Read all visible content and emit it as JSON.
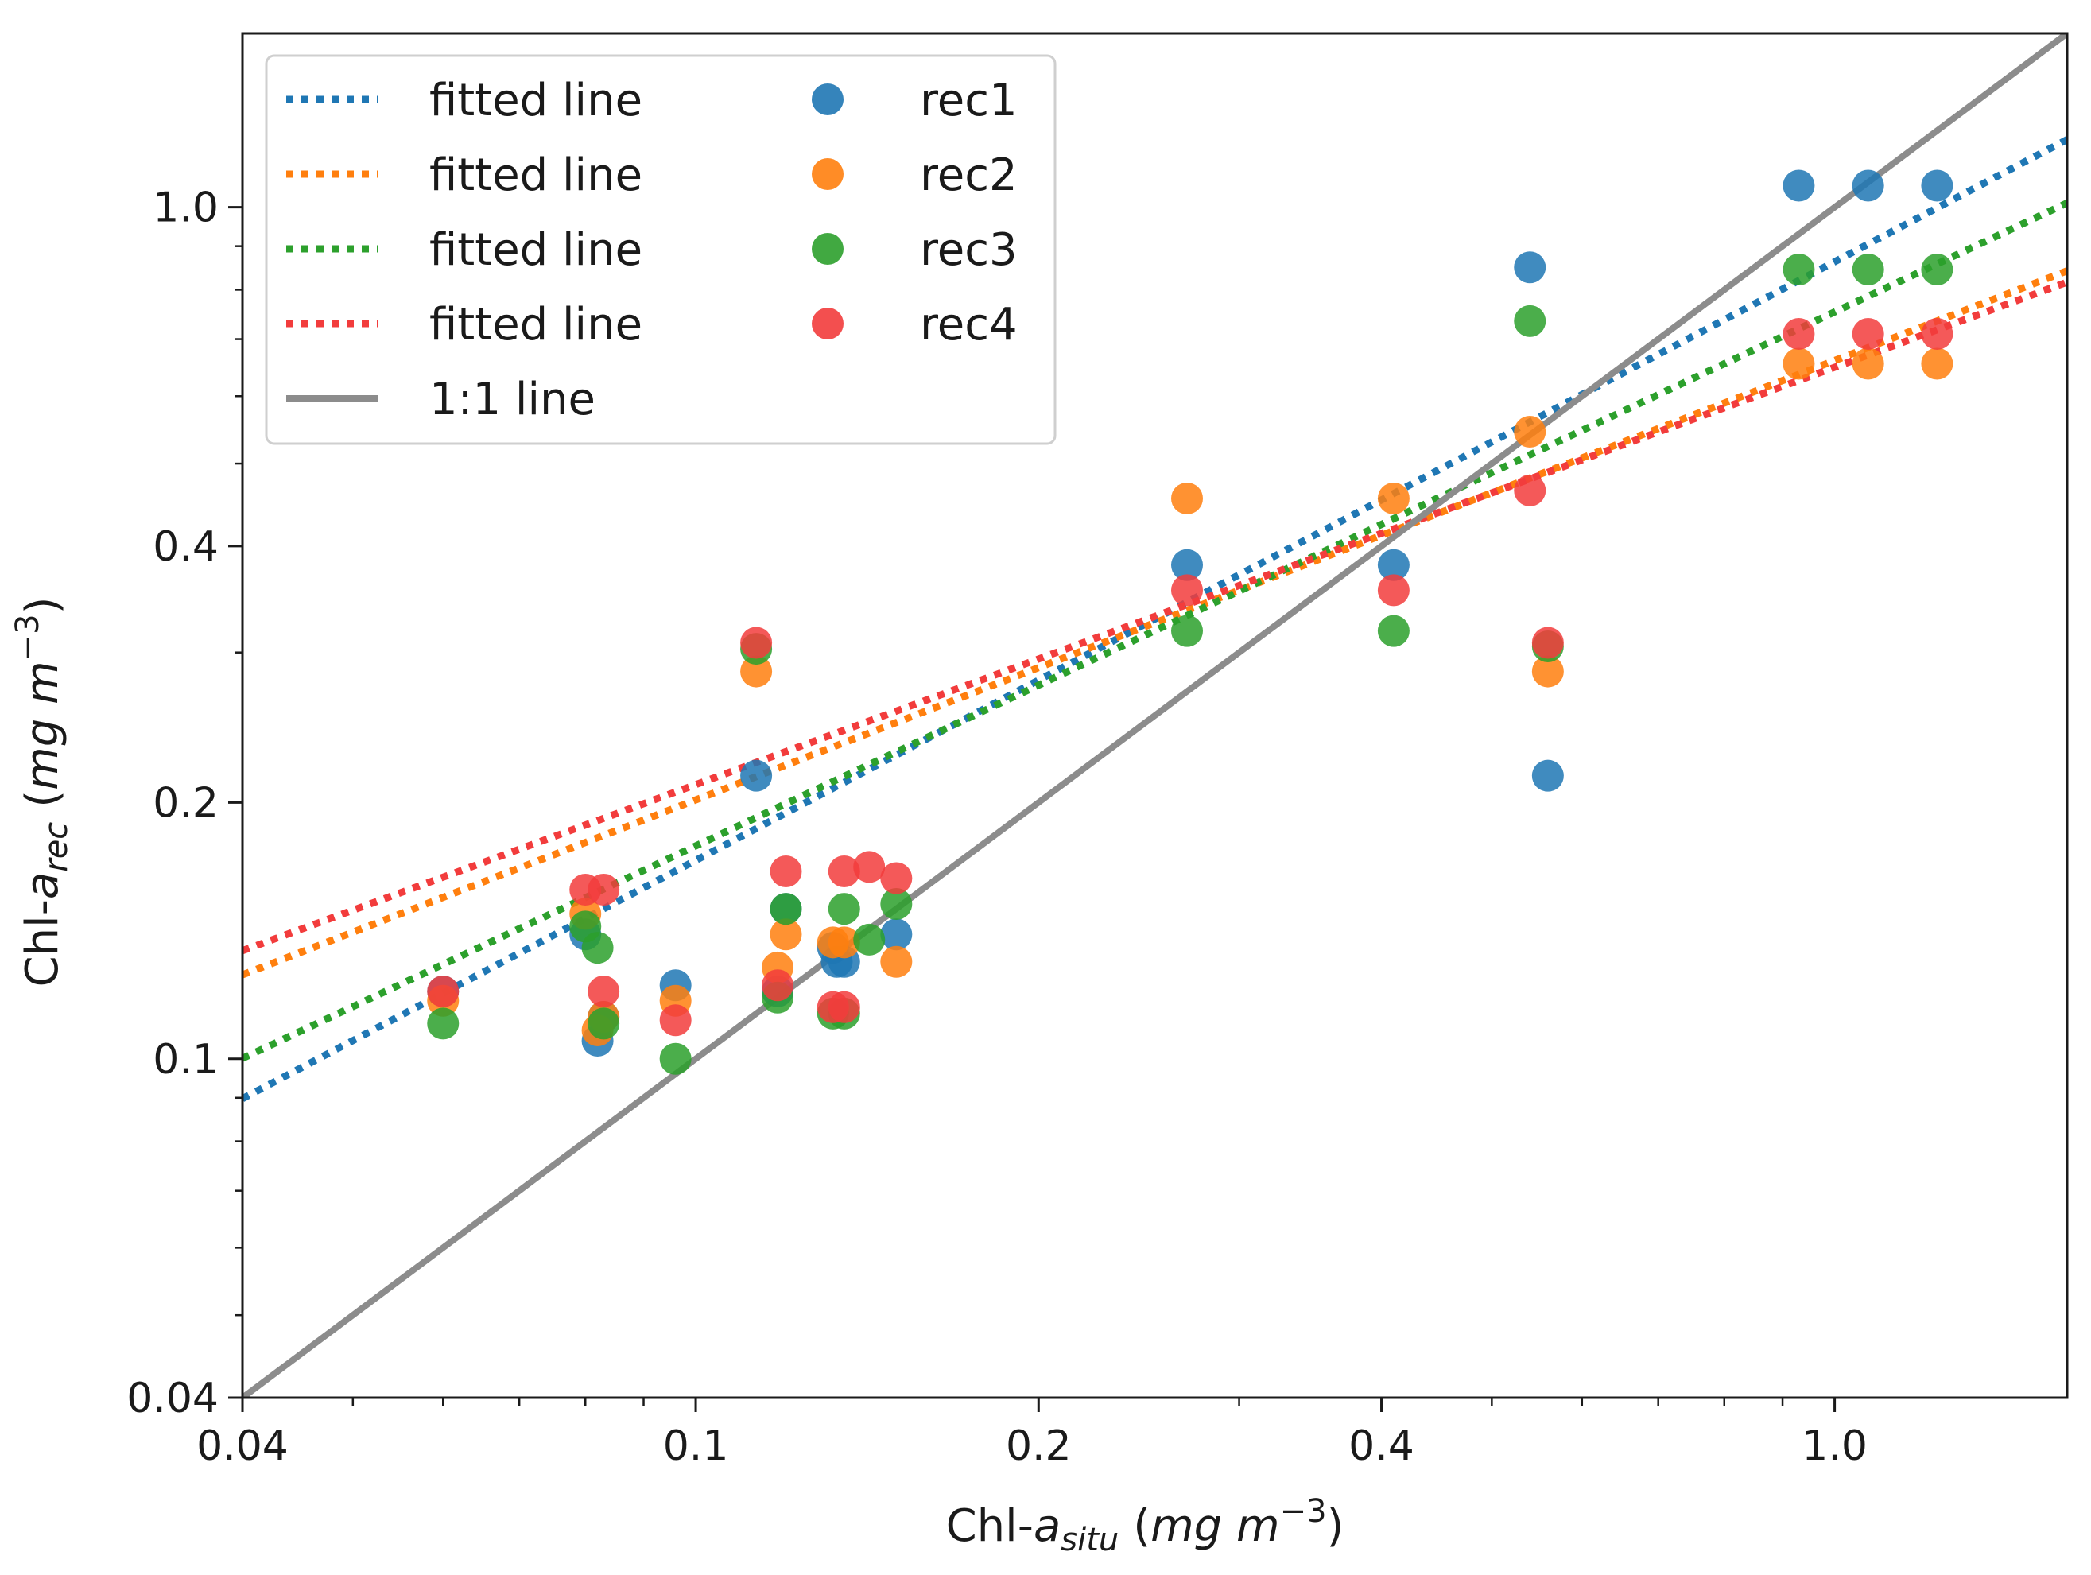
{
  "chart_data": {
    "type": "scatter",
    "xscale": "log",
    "yscale": "log",
    "xlim": [
      0.04,
      1.6
    ],
    "ylim": [
      0.04,
      1.6
    ],
    "grid": false,
    "legend_position": "top-left",
    "xlabel": {
      "main": "Chl-",
      "italic": "a",
      "sub": "situ",
      "unit_open": "(",
      "unit": "mg m",
      "sup": "−3",
      "unit_close": ")"
    },
    "ylabel": {
      "main": "Chl-",
      "italic": "a",
      "sub": "rec",
      "unit_open": "(",
      "unit": "mg m",
      "sup": "−3",
      "unit_close": ")"
    },
    "xticks": [
      {
        "value": 0.04,
        "label": "0.04"
      },
      {
        "value": 0.1,
        "label": "0.1"
      },
      {
        "value": 0.2,
        "label": "0.2"
      },
      {
        "value": 0.4,
        "label": "0.4"
      },
      {
        "value": 1.0,
        "label": "1.0"
      }
    ],
    "yticks": [
      {
        "value": 0.04,
        "label": "0.04"
      },
      {
        "value": 0.1,
        "label": "0.1"
      },
      {
        "value": 0.2,
        "label": "0.2"
      },
      {
        "value": 0.4,
        "label": "0.4"
      },
      {
        "value": 1.0,
        "label": "1.0"
      }
    ],
    "identity_line": {
      "label": "1:1 line",
      "color": "#8c8c8c"
    },
    "series": [
      {
        "name": "rec1",
        "color": "#1f77b4",
        "fit_label": "fitted line",
        "fit": {
          "slope": 0.703,
          "intercept": -0.064
        },
        "points": [
          [
            0.06,
            0.12
          ],
          [
            0.08,
            0.14
          ],
          [
            0.082,
            0.105
          ],
          [
            0.083,
            0.112
          ],
          [
            0.096,
            0.122
          ],
          [
            0.113,
            0.215
          ],
          [
            0.118,
            0.12
          ],
          [
            0.12,
            0.15
          ],
          [
            0.132,
            0.135
          ],
          [
            0.133,
            0.13
          ],
          [
            0.135,
            0.13
          ],
          [
            0.15,
            0.14
          ],
          [
            0.27,
            0.38
          ],
          [
            0.41,
            0.38
          ],
          [
            0.54,
            0.85
          ],
          [
            0.56,
            0.215
          ],
          [
            0.93,
            1.06
          ],
          [
            1.07,
            1.06
          ],
          [
            1.23,
            1.06
          ]
        ]
      },
      {
        "name": "rec2",
        "color": "#ff7f0e",
        "fit_label": "fitted line",
        "fit": {
          "slope": 0.516,
          "intercept": -0.18
        },
        "points": [
          [
            0.06,
            0.117
          ],
          [
            0.08,
            0.148
          ],
          [
            0.082,
            0.108
          ],
          [
            0.083,
            0.112
          ],
          [
            0.096,
            0.117
          ],
          [
            0.113,
            0.285
          ],
          [
            0.118,
            0.128
          ],
          [
            0.12,
            0.14
          ],
          [
            0.132,
            0.137
          ],
          [
            0.135,
            0.137
          ],
          [
            0.15,
            0.13
          ],
          [
            0.27,
            0.455
          ],
          [
            0.41,
            0.455
          ],
          [
            0.54,
            0.545
          ],
          [
            0.56,
            0.285
          ],
          [
            0.93,
            0.655
          ],
          [
            1.07,
            0.655
          ],
          [
            1.23,
            0.655
          ]
        ]
      },
      {
        "name": "rec3",
        "color": "#2ca02c",
        "fit_label": "fitted line",
        "fit": {
          "slope": 0.627,
          "intercept": -0.123
        },
        "points": [
          [
            0.06,
            0.11
          ],
          [
            0.08,
            0.143
          ],
          [
            0.082,
            0.135
          ],
          [
            0.083,
            0.11
          ],
          [
            0.096,
            0.1
          ],
          [
            0.113,
            0.303
          ],
          [
            0.118,
            0.118
          ],
          [
            0.12,
            0.15
          ],
          [
            0.132,
            0.113
          ],
          [
            0.135,
            0.113
          ],
          [
            0.135,
            0.15
          ],
          [
            0.142,
            0.138
          ],
          [
            0.15,
            0.152
          ],
          [
            0.27,
            0.318
          ],
          [
            0.41,
            0.318
          ],
          [
            0.54,
            0.735
          ],
          [
            0.56,
            0.305
          ],
          [
            0.93,
            0.845
          ],
          [
            1.07,
            0.845
          ],
          [
            1.23,
            0.845
          ]
        ]
      },
      {
        "name": "rec4",
        "color": "#f23c3c",
        "fit_label": "fitted line",
        "fit": {
          "slope": 0.49,
          "intercept": -0.188
        },
        "points": [
          [
            0.06,
            0.12
          ],
          [
            0.08,
            0.158
          ],
          [
            0.083,
            0.158
          ],
          [
            0.083,
            0.12
          ],
          [
            0.096,
            0.111
          ],
          [
            0.113,
            0.308
          ],
          [
            0.118,
            0.122
          ],
          [
            0.12,
            0.166
          ],
          [
            0.132,
            0.115
          ],
          [
            0.135,
            0.115
          ],
          [
            0.135,
            0.166
          ],
          [
            0.142,
            0.168
          ],
          [
            0.15,
            0.163
          ],
          [
            0.27,
            0.355
          ],
          [
            0.41,
            0.355
          ],
          [
            0.54,
            0.465
          ],
          [
            0.56,
            0.308
          ],
          [
            0.93,
            0.71
          ],
          [
            1.07,
            0.71
          ],
          [
            1.23,
            0.71
          ]
        ]
      }
    ]
  }
}
